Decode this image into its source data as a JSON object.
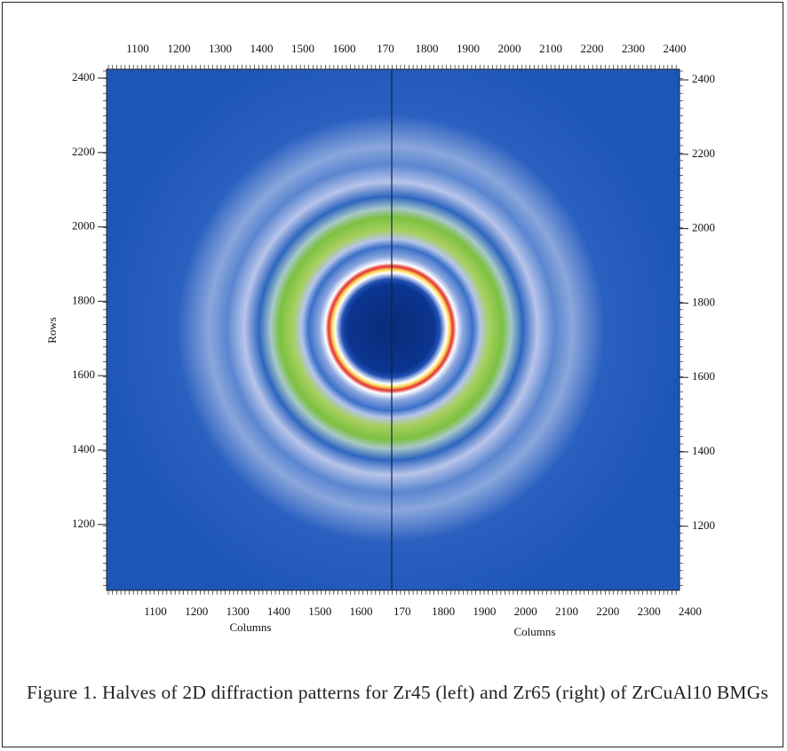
{
  "figure": {
    "top_ticks": [
      "1100",
      "1200",
      "1300",
      "1400",
      "1500",
      "1600",
      "170",
      "1800",
      "1900",
      "2000",
      "2100",
      "2200",
      "2300",
      "2400"
    ],
    "bottom_ticks": [
      "1100",
      "1200",
      "1300",
      "1400",
      "1500",
      "1600",
      "170",
      "1800",
      "1900",
      "2000",
      "2100",
      "2200",
      "2300",
      "2400"
    ],
    "left_ticks": [
      "2400",
      "2200",
      "2000",
      "1800",
      "1600",
      "1400",
      "1200"
    ],
    "right_ticks": [
      "2400",
      "2200",
      "2000",
      "1800",
      "1600",
      "1400",
      "1200"
    ],
    "y_label": "Rows",
    "x_label_left": "Columns",
    "x_label_right": "Columns",
    "caption": "Figure 1. Halves of 2D diffraction patterns for Zr45 (left) and Zr65 (right) of ZrCuAl10  BMGs"
  }
}
